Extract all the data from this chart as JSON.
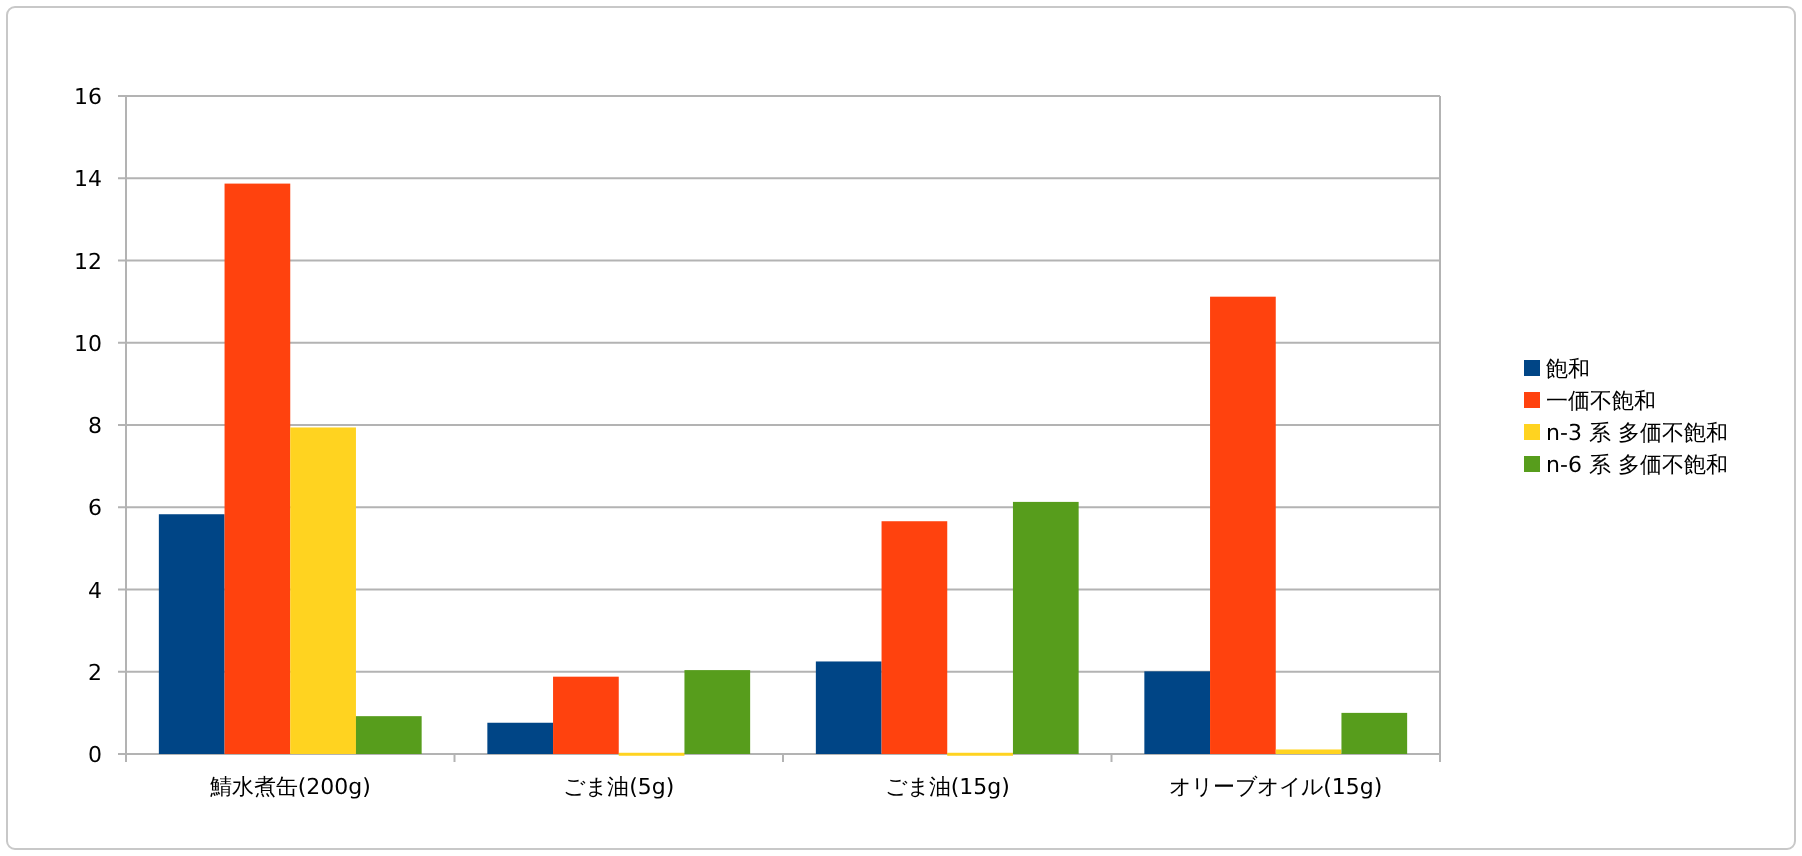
{
  "chart_data": {
    "type": "bar",
    "categories": [
      "鯖水煮缶(200g)",
      "ごま油(5g)",
      "ごま油(15g)",
      "オリーブオイル(15g)"
    ],
    "series": [
      {
        "name": "飽和",
        "color": "#004586",
        "values": [
          5.83,
          0.76,
          2.25,
          2.01
        ]
      },
      {
        "name": "一価不飽和",
        "color": "#ff420e",
        "values": [
          13.87,
          1.88,
          5.66,
          11.12
        ]
      },
      {
        "name": "n-3 系 多価不飽和",
        "color": "#ffd320",
        "values": [
          7.94,
          0.03,
          0.03,
          0.11
        ]
      },
      {
        "name": "n-6 系 多価不飽和",
        "color": "#579d1c",
        "values": [
          0.92,
          2.04,
          6.13,
          1.0
        ]
      }
    ],
    "ylim": [
      0,
      16
    ],
    "yticks": [
      0,
      2,
      4,
      6,
      8,
      10,
      12,
      14,
      16
    ],
    "grid": "y",
    "legend": "right"
  }
}
